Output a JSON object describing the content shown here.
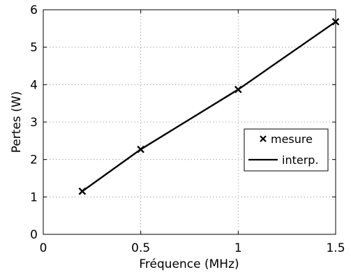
{
  "chart_data": {
    "type": "line",
    "xlabel": "Fréquence (MHz)",
    "ylabel": "Pertes (W)",
    "xlim": [
      0,
      1.5
    ],
    "ylim": [
      0,
      6
    ],
    "xticks": [
      "0",
      "0.5",
      "1",
      "1.5"
    ],
    "yticks": [
      "0",
      "1",
      "2",
      "3",
      "4",
      "5",
      "6"
    ],
    "grid": true,
    "legend_position": "center-right",
    "series": [
      {
        "name": "mesure",
        "style": "markers",
        "marker": "x",
        "x": [
          0.2,
          0.5,
          1.0,
          1.5
        ],
        "y": [
          1.15,
          2.27,
          3.87,
          5.68
        ]
      },
      {
        "name": "interp.",
        "style": "line",
        "x": [
          0.2,
          0.5,
          1.0,
          1.5
        ],
        "y": [
          1.15,
          2.27,
          3.87,
          5.68
        ]
      }
    ],
    "colors": {
      "series": "#000000",
      "grid": "#999999"
    }
  }
}
